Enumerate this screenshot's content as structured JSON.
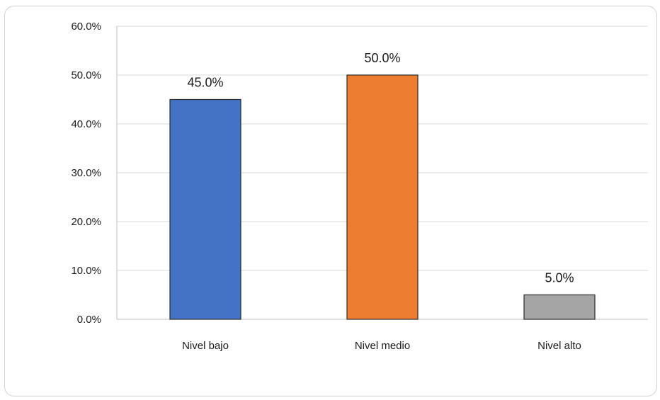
{
  "chart_data": {
    "type": "bar",
    "categories": [
      "Nivel bajo",
      "Nivel medio",
      "Nivel alto"
    ],
    "values": [
      45.0,
      50.0,
      5.0
    ],
    "data_labels": [
      "45.0%",
      "50.0%",
      "5.0%"
    ],
    "colors": [
      "#4472C4",
      "#ED7D31",
      "#A5A5A5"
    ],
    "ylim": [
      0,
      60
    ],
    "yticks": [
      0,
      10,
      20,
      30,
      40,
      50,
      60
    ],
    "ytick_labels": [
      "0.0%",
      "10.0%",
      "20.0%",
      "30.0%",
      "40.0%",
      "50.0%",
      "60.0%"
    ],
    "grid": true,
    "legend": "none"
  }
}
